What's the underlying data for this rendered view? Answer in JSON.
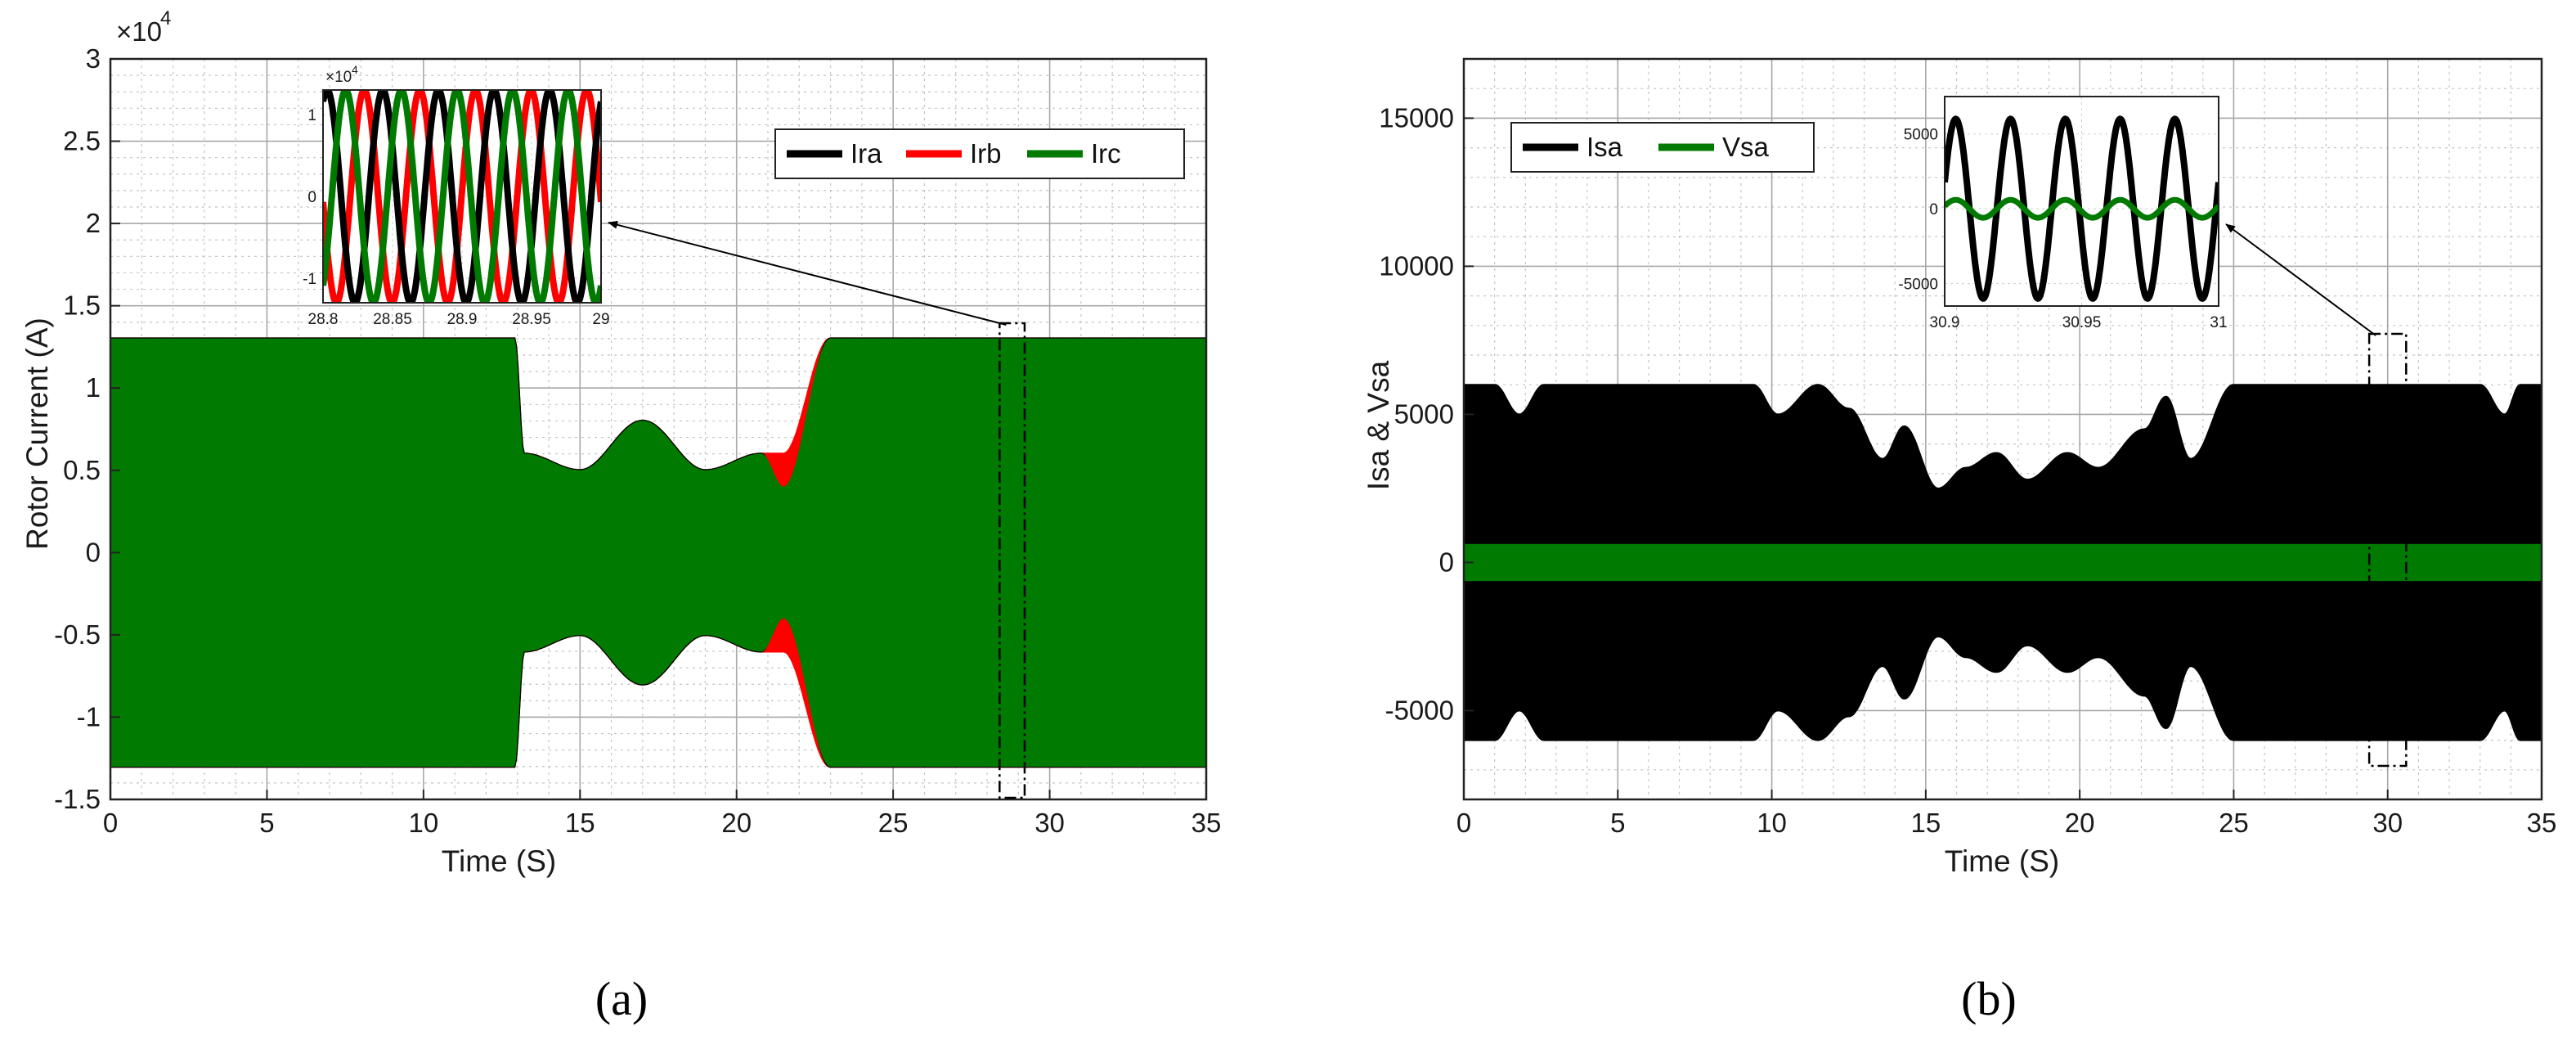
{
  "figure": {
    "panel_a_caption": "(a)",
    "panel_b_caption": "(b)"
  },
  "chart_data": [
    {
      "type": "line",
      "panel": "a",
      "xlabel": "Time (S)",
      "ylabel": "Rotor Current (A)",
      "xlim": [
        0,
        35
      ],
      "ylim": [
        -15000,
        30000
      ],
      "xticks": [
        0,
        5,
        10,
        15,
        20,
        25,
        30,
        35
      ],
      "yticks": [
        -1.5,
        -1,
        -0.5,
        0,
        0.5,
        1,
        1.5,
        2,
        2.5,
        3
      ],
      "y_exponent": "×10",
      "y_exponent_power": "4",
      "grid": true,
      "legend_position": "top-right",
      "colors": {
        "Ira": "#000000",
        "Irb": "#ff0000",
        "Irc": "#007a00"
      },
      "series": [
        {
          "name": "Ira",
          "envelope_x": [
            0,
            2,
            4,
            6,
            8,
            10,
            11.5,
            12.9,
            13.2,
            15,
            17,
            19,
            20.8,
            21.5,
            23,
            25,
            27,
            29,
            31,
            33,
            35
          ],
          "envelope_amplitude": [
            13000,
            13000,
            13000,
            13000,
            13000,
            13000,
            13000,
            13000,
            6000,
            5000,
            8000,
            5000,
            6000,
            2500,
            13000,
            13000,
            13000,
            13000,
            13000,
            13000,
            13000
          ]
        },
        {
          "name": "Irb",
          "envelope_x": [
            0,
            2,
            4,
            6,
            8,
            10,
            11.5,
            12.9,
            13.2,
            15,
            17,
            19,
            20.8,
            21.5,
            23,
            25,
            27,
            29,
            31,
            33,
            35
          ],
          "envelope_amplitude": [
            13000,
            13000,
            13000,
            13000,
            13000,
            13000,
            13000,
            13000,
            6000,
            5000,
            8000,
            5000,
            6000,
            6000,
            13000,
            13000,
            13000,
            13000,
            13000,
            13000,
            13000
          ]
        },
        {
          "name": "Irc",
          "envelope_x": [
            0,
            2,
            4,
            6,
            8,
            10,
            11.5,
            12.9,
            13.2,
            15,
            17,
            19,
            20.8,
            21.5,
            23,
            25,
            27,
            29,
            31,
            33,
            35
          ],
          "envelope_amplitude": [
            13000,
            13000,
            13000,
            13000,
            13000,
            13000,
            13000,
            13000,
            6000,
            5000,
            8000,
            5000,
            6000,
            4000,
            13000,
            13000,
            13000,
            13000,
            13000,
            13000,
            13000
          ]
        }
      ],
      "inset": {
        "xlim": [
          28.8,
          29
        ],
        "ylim": [
          -13000,
          13000
        ],
        "xticks": [
          28.8,
          28.85,
          28.9,
          28.95,
          29
        ],
        "yticks": [
          -1,
          0,
          1
        ],
        "y_exponent": "×10",
        "y_exponent_power": "4",
        "frequency_hz": 25,
        "amplitude": 13000,
        "zoom_region_x": [
          28.4,
          29.2
        ]
      }
    },
    {
      "type": "line",
      "panel": "b",
      "xlabel": "Time (S)",
      "ylabel": "Isa  &  Vsa",
      "xlim": [
        0,
        35
      ],
      "ylim": [
        -8000,
        17000
      ],
      "xticks": [
        0,
        5,
        10,
        15,
        20,
        25,
        30,
        35
      ],
      "yticks": [
        -5000,
        0,
        5000,
        10000,
        15000
      ],
      "grid": true,
      "legend_position": "top-left",
      "colors": {
        "Isa": "#000000",
        "Vsa": "#007a00"
      },
      "series": [
        {
          "name": "Isa",
          "envelope_x": [
            0,
            1,
            1.8,
            2.6,
            4,
            6,
            8,
            9.4,
            10.2,
            11.5,
            12.5,
            13.6,
            14.3,
            15.4,
            16.3,
            17.3,
            18.3,
            19.6,
            20.6,
            22.1,
            22.8,
            23.6,
            25,
            26.3,
            27,
            29,
            31,
            33,
            33.8,
            34.3,
            35
          ],
          "envelope_amplitude": [
            6000,
            6000,
            5000,
            6000,
            6000,
            6000,
            6000,
            6000,
            5000,
            6000,
            5200,
            3500,
            4600,
            2500,
            3200,
            3700,
            2800,
            3700,
            3200,
            4500,
            5600,
            3500,
            6000,
            6000,
            6000,
            6000,
            6000,
            6000,
            5000,
            6000,
            6000
          ]
        },
        {
          "name": "Vsa",
          "envelope_x": [
            0,
            35
          ],
          "envelope_amplitude": [
            600,
            600
          ]
        }
      ],
      "inset": {
        "xlim": [
          30.9,
          31
        ],
        "ylim": [
          -6500,
          7500
        ],
        "xticks": [
          30.9,
          30.95,
          31
        ],
        "yticks": [
          -5000,
          0,
          5000
        ],
        "frequency_hz": 50,
        "isa_amplitude": 6000,
        "vsa_amplitude": 600,
        "zoom_region_x": [
          29.4,
          30.6
        ]
      }
    }
  ]
}
